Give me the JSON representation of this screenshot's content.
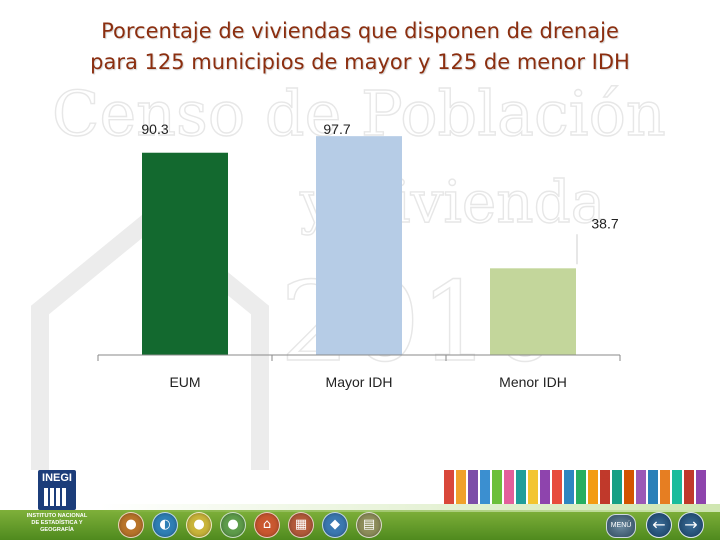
{
  "slide": {
    "title_line1": "Porcentaje de viviendas que disponen de drenaje",
    "title_line2": "para 125 municipios de mayor y 125 de menor IDH",
    "watermark": {
      "line1": "Censo de Población",
      "line2": "y Vivienda",
      "year": "2010"
    }
  },
  "chart_data": {
    "type": "bar",
    "title": "Porcentaje de viviendas que disponen de drenaje para 125 municipios de mayor y 125 de menor IDH",
    "categories": [
      "EUM",
      "Mayor IDH",
      "Menor IDH"
    ],
    "values": [
      90.3,
      97.7,
      38.7
    ],
    "value_labels": [
      "90.3",
      "97.7",
      "38.7"
    ],
    "colors": [
      "#13692f",
      "#b6cce6",
      "#c3d69b"
    ],
    "ylim": [
      0,
      100
    ],
    "xlabel": "",
    "ylabel": "",
    "grid": false,
    "legend": "none"
  },
  "footer": {
    "logo_word": "INEGI",
    "logo_line1": "INSTITUTO NACIONAL",
    "logo_line2": "DE ESTADÍSTICA Y GEOGRAFÍA",
    "menu_label": "MENÚ",
    "prev_glyph": "←",
    "next_glyph": "→",
    "nav_icons": [
      {
        "name": "people-icon",
        "glyph": "●",
        "color": "#b8742a"
      },
      {
        "name": "globe-icon",
        "glyph": "◐",
        "color": "#2f7fb5"
      },
      {
        "name": "family-icon",
        "glyph": "●",
        "color": "#c9b43a"
      },
      {
        "name": "person-icon",
        "glyph": "●",
        "color": "#5e9c4b"
      },
      {
        "name": "house-icon",
        "glyph": "⌂",
        "color": "#c9572f"
      },
      {
        "name": "building-icon",
        "glyph": "▦",
        "color": "#b25a3a"
      },
      {
        "name": "map-icon",
        "glyph": "◆",
        "color": "#3b78b0"
      },
      {
        "name": "document-icon",
        "glyph": "▤",
        "color": "#8d8d5a"
      }
    ],
    "people_colors": [
      "#d9473a",
      "#f0a12b",
      "#7c4ea8",
      "#3b8fd0",
      "#6cbf3a",
      "#e35f9b",
      "#1f9e9a",
      "#f3c530",
      "#8e44ad",
      "#e74c3c",
      "#2e86c1",
      "#27ae60",
      "#f39c12",
      "#c0392b",
      "#16a085",
      "#d35400",
      "#9b59b6",
      "#2980b9",
      "#e67e22",
      "#1abc9c",
      "#c0392b",
      "#8e44ad"
    ]
  }
}
